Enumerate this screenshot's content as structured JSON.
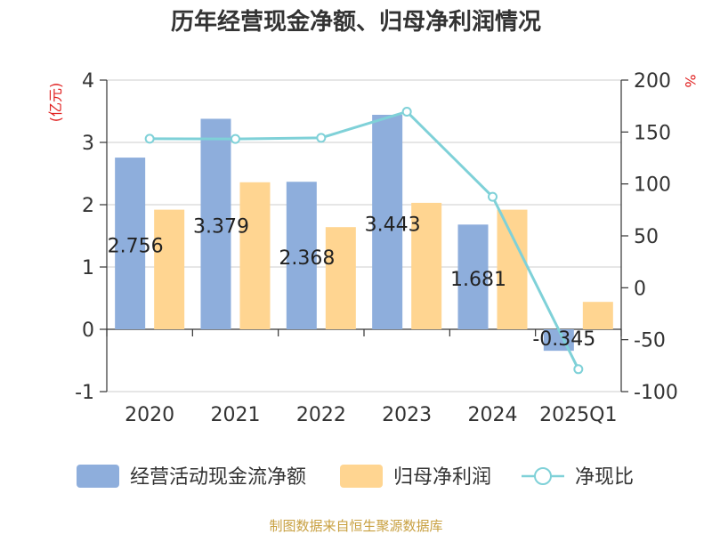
{
  "chart_data": {
    "type": "bar",
    "title": "历年经营现金净额、归母净利润情况",
    "categories": [
      "2020",
      "2021",
      "2022",
      "2023",
      "2024",
      "2025Q1"
    ],
    "left_axis": {
      "unit": "(亿元)",
      "ylim": [
        -1,
        4
      ],
      "ticks": [
        "-1",
        "0",
        "1",
        "2",
        "3",
        "4"
      ]
    },
    "right_axis": {
      "unit": "%",
      "ylim": [
        -100,
        200
      ],
      "ticks": [
        "-100",
        "-50",
        "0",
        "50",
        "100",
        "150",
        "200"
      ]
    },
    "series": [
      {
        "name": "经营活动现金流净额",
        "kind": "bar",
        "axis": "left",
        "color": "#8eaedc",
        "values": [
          2.756,
          3.379,
          2.368,
          3.443,
          1.681,
          -0.345
        ],
        "labels": [
          "2.756",
          "3.379",
          "2.368",
          "3.443",
          "1.681",
          "-0.345"
        ]
      },
      {
        "name": "归母净利润",
        "kind": "bar",
        "axis": "left",
        "color": "#ffd591",
        "values": [
          1.92,
          2.36,
          1.64,
          2.03,
          1.92,
          0.44
        ]
      },
      {
        "name": "净现比",
        "kind": "line",
        "axis": "right",
        "color": "#7fd1d8",
        "values": [
          143.5,
          143.3,
          144.4,
          169.6,
          87.6,
          -78.4
        ]
      }
    ],
    "grid": true,
    "legend_position": "bottom"
  },
  "source": "制图数据来自恒生聚源数据库",
  "colors": {
    "title": "#333333",
    "axis": "#333333",
    "grid": "#cccccc",
    "unit": "#e02020",
    "source": "#c8a040"
  }
}
